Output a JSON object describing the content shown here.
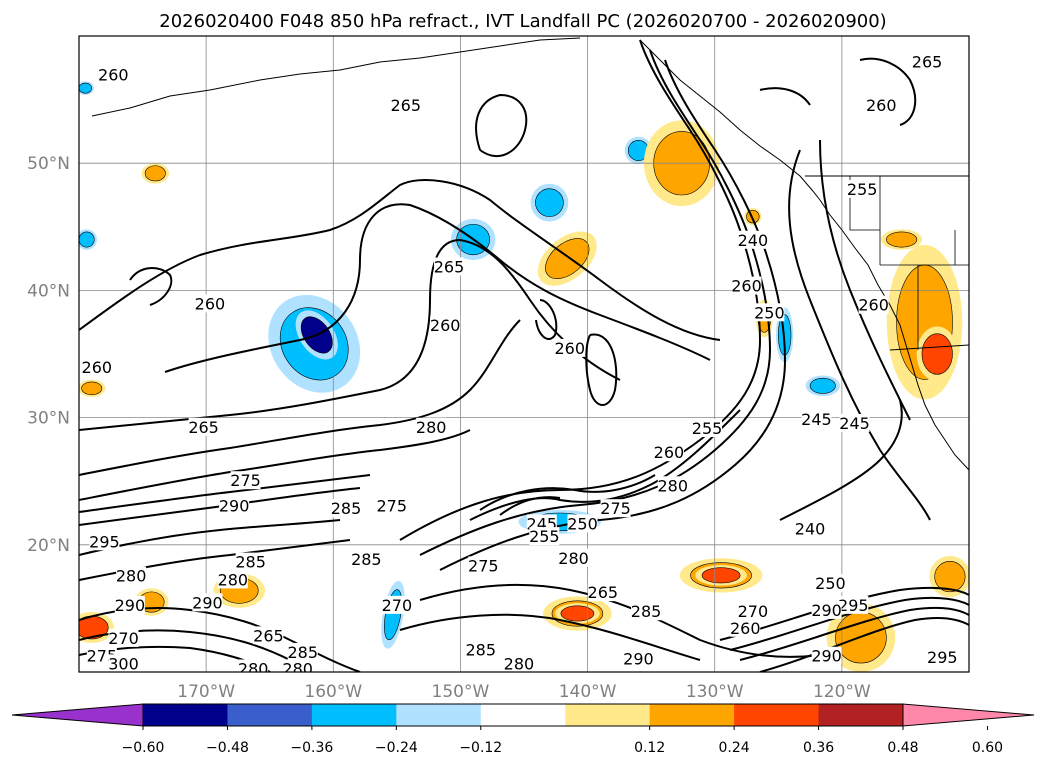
{
  "chart_data": {
    "type": "contour-map",
    "title": "2026020400 F048 850 hPa refract., IVT Landfall PC (2026020700 - 2026020900)",
    "lon_range": [
      -180,
      -110
    ],
    "lat_range": [
      10,
      60
    ],
    "lat_ticks": [
      {
        "value": 20,
        "label": "20°N"
      },
      {
        "value": 30,
        "label": "30°N"
      },
      {
        "value": 40,
        "label": "40°N"
      },
      {
        "value": 50,
        "label": "50°N"
      }
    ],
    "lon_ticks": [
      {
        "value": -170,
        "label": "170°W"
      },
      {
        "value": -160,
        "label": "160°W"
      },
      {
        "value": -150,
        "label": "150°W"
      },
      {
        "value": -140,
        "label": "140°W"
      },
      {
        "value": -130,
        "label": "130°W"
      },
      {
        "value": -120,
        "label": "120°W"
      }
    ],
    "grid": true,
    "contour_labels": [
      {
        "text": "260",
        "lon": -177.3,
        "lat": 56.9
      },
      {
        "text": "265",
        "lon": -154.3,
        "lat": 54.5
      },
      {
        "text": "265",
        "lon": -113.3,
        "lat": 57.9
      },
      {
        "text": "260",
        "lon": -116.9,
        "lat": 54.5
      },
      {
        "text": "260",
        "lon": -169.7,
        "lat": 38.9
      },
      {
        "text": "265",
        "lon": -150.9,
        "lat": 41.8
      },
      {
        "text": "260",
        "lon": -151.2,
        "lat": 37.2
      },
      {
        "text": "260",
        "lon": -141.4,
        "lat": 35.4
      },
      {
        "text": "260",
        "lon": -178.6,
        "lat": 33.9
      },
      {
        "text": "265",
        "lon": -170.2,
        "lat": 29.2
      },
      {
        "text": "240",
        "lon": -127.0,
        "lat": 43.9
      },
      {
        "text": "250",
        "lon": -125.7,
        "lat": 38.2
      },
      {
        "text": "260",
        "lon": -127.5,
        "lat": 40.3
      },
      {
        "text": "255",
        "lon": -118.4,
        "lat": 47.9
      },
      {
        "text": "260",
        "lon": -117.5,
        "lat": 38.8
      },
      {
        "text": "245",
        "lon": -122.0,
        "lat": 29.8
      },
      {
        "text": "245",
        "lon": -119.0,
        "lat": 29.5
      },
      {
        "text": "280",
        "lon": -152.3,
        "lat": 29.2
      },
      {
        "text": "275",
        "lon": -166.9,
        "lat": 25.0
      },
      {
        "text": "290",
        "lon": -167.8,
        "lat": 23.0
      },
      {
        "text": "285",
        "lon": -159.0,
        "lat": 22.8
      },
      {
        "text": "275",
        "lon": -155.4,
        "lat": 23.0
      },
      {
        "text": "245",
        "lon": -143.6,
        "lat": 21.6
      },
      {
        "text": "250",
        "lon": -140.4,
        "lat": 21.6
      },
      {
        "text": "255",
        "lon": -143.4,
        "lat": 20.6
      },
      {
        "text": "260",
        "lon": -133.6,
        "lat": 27.2
      },
      {
        "text": "255",
        "lon": -130.6,
        "lat": 29.1
      },
      {
        "text": "275",
        "lon": -137.8,
        "lat": 22.8
      },
      {
        "text": "280",
        "lon": -133.3,
        "lat": 24.6
      },
      {
        "text": "240",
        "lon": -122.5,
        "lat": 21.2
      },
      {
        "text": "295",
        "lon": -178.0,
        "lat": 20.2
      },
      {
        "text": "280",
        "lon": -175.9,
        "lat": 17.5
      },
      {
        "text": "285",
        "lon": -166.5,
        "lat": 18.6
      },
      {
        "text": "285",
        "lon": -157.4,
        "lat": 18.8
      },
      {
        "text": "280",
        "lon": -167.9,
        "lat": 17.2
      },
      {
        "text": "290",
        "lon": -176.0,
        "lat": 15.2
      },
      {
        "text": "290",
        "lon": -169.9,
        "lat": 15.4
      },
      {
        "text": "270",
        "lon": -155.0,
        "lat": 15.2
      },
      {
        "text": "275",
        "lon": -148.2,
        "lat": 18.3
      },
      {
        "text": "280",
        "lon": -141.1,
        "lat": 18.9
      },
      {
        "text": "265",
        "lon": -138.8,
        "lat": 16.2
      },
      {
        "text": "285",
        "lon": -135.4,
        "lat": 14.7
      },
      {
        "text": "270",
        "lon": -176.5,
        "lat": 12.6
      },
      {
        "text": "265",
        "lon": -165.1,
        "lat": 12.8
      },
      {
        "text": "285",
        "lon": -162.4,
        "lat": 11.5
      },
      {
        "text": "275",
        "lon": -178.2,
        "lat": 11.2
      },
      {
        "text": "300",
        "lon": -176.5,
        "lat": 10.6
      },
      {
        "text": "280",
        "lon": -162.8,
        "lat": 10.2
      },
      {
        "text": "280",
        "lon": -166.3,
        "lat": 10.2
      },
      {
        "text": "285",
        "lon": -148.4,
        "lat": 11.7
      },
      {
        "text": "280",
        "lon": -145.4,
        "lat": 10.6
      },
      {
        "text": "290",
        "lon": -136.0,
        "lat": 11.0
      },
      {
        "text": "250",
        "lon": -120.9,
        "lat": 16.9
      },
      {
        "text": "295",
        "lon": -119.1,
        "lat": 15.2
      },
      {
        "text": "290",
        "lon": -121.2,
        "lat": 14.8
      },
      {
        "text": "270",
        "lon": -127.0,
        "lat": 14.7
      },
      {
        "text": "260",
        "lon": -127.6,
        "lat": 13.4
      },
      {
        "text": "290",
        "lon": -121.2,
        "lat": 11.2
      },
      {
        "text": "295",
        "lon": -112.1,
        "lat": 11.1
      }
    ],
    "contour_levels": [
      240,
      245,
      250,
      255,
      260,
      265,
      270,
      275,
      280,
      285,
      290,
      295,
      300
    ],
    "colorbar": {
      "orientation": "horizontal",
      "ticks": [
        -0.6,
        -0.48,
        -0.36,
        -0.24,
        -0.12,
        0.12,
        0.24,
        0.36,
        0.48,
        0.6
      ],
      "tick_labels": [
        "−0.60",
        "−0.48",
        "−0.36",
        "−0.24",
        "−0.12",
        "0.12",
        "0.24",
        "0.36",
        "0.48",
        "0.60"
      ],
      "under_color": "#9932cc",
      "over_color": "#ff88aa",
      "colors": [
        "#9a30d0",
        "#00008b",
        "#3a5fcd",
        "#00bfff",
        "#b0e2ff",
        "#ffffff",
        "#ffe98a",
        "#ffa500",
        "#ff4500",
        "#b22222",
        "#ff88aa"
      ]
    },
    "shaded_features": [
      {
        "sign": "negative",
        "level": -0.24,
        "lon": -161.5,
        "lat": 35.8,
        "rx": 2.5,
        "ry": 3.0,
        "rot": -35
      },
      {
        "sign": "negative",
        "level": -0.48,
        "lon": -161.3,
        "lat": 36.5,
        "rx": 1.0,
        "ry": 1.6,
        "rot": -35
      },
      {
        "sign": "negative",
        "level": -0.24,
        "lon": -142.2,
        "lat": 21.8,
        "rx": 2.4,
        "ry": 0.7,
        "rot": 0
      },
      {
        "sign": "negative",
        "level": -0.24,
        "lon": -149.0,
        "lat": 44.0,
        "rx": 1.3,
        "ry": 1.2,
        "rot": 0
      },
      {
        "sign": "negative",
        "level": -0.24,
        "lon": -143.0,
        "lat": 46.9,
        "rx": 1.1,
        "ry": 1.1,
        "rot": 0
      },
      {
        "sign": "negative",
        "level": -0.24,
        "lon": -136.0,
        "lat": 51.0,
        "rx": 0.8,
        "ry": 0.8,
        "rot": 0
      },
      {
        "sign": "negative",
        "level": -0.24,
        "lon": -124.5,
        "lat": 36.5,
        "rx": 0.5,
        "ry": 1.6,
        "rot": 0
      },
      {
        "sign": "negative",
        "level": -0.24,
        "lon": -121.5,
        "lat": 32.5,
        "rx": 1.0,
        "ry": 0.6,
        "rot": 0
      },
      {
        "sign": "negative",
        "level": -0.24,
        "lon": -155.3,
        "lat": 14.5,
        "rx": 0.6,
        "ry": 2.0,
        "rot": 10
      },
      {
        "sign": "negative",
        "level": -0.24,
        "lon": -179.4,
        "lat": 44.0,
        "rx": 0.6,
        "ry": 0.6,
        "rot": 0
      },
      {
        "sign": "negative",
        "level": -0.24,
        "lon": -179.5,
        "lat": 55.9,
        "rx": 0.5,
        "ry": 0.4,
        "rot": 0
      },
      {
        "sign": "positive",
        "level": 0.24,
        "lon": -132.6,
        "lat": 50.0,
        "rx": 2.2,
        "ry": 2.5,
        "rot": 0
      },
      {
        "sign": "positive",
        "level": 0.24,
        "lon": -141.6,
        "lat": 42.5,
        "rx": 2.0,
        "ry": 1.2,
        "rot": -40
      },
      {
        "sign": "positive",
        "level": 0.24,
        "lon": -129.5,
        "lat": 17.6,
        "rx": 2.4,
        "ry": 1.0,
        "rot": 0
      },
      {
        "sign": "positive",
        "level": 0.36,
        "lon": -129.5,
        "lat": 17.6,
        "rx": 1.5,
        "ry": 0.6,
        "rot": 0
      },
      {
        "sign": "positive",
        "level": 0.24,
        "lon": -140.8,
        "lat": 14.6,
        "rx": 2.0,
        "ry": 1.0,
        "rot": 0
      },
      {
        "sign": "positive",
        "level": 0.36,
        "lon": -140.8,
        "lat": 14.6,
        "rx": 1.3,
        "ry": 0.6,
        "rot": 0
      },
      {
        "sign": "positive",
        "level": 0.24,
        "lon": -113.5,
        "lat": 37.5,
        "rx": 2.2,
        "ry": 4.5,
        "rot": 0
      },
      {
        "sign": "positive",
        "level": 0.36,
        "lon": -112.5,
        "lat": 35.0,
        "rx": 1.2,
        "ry": 1.6,
        "rot": 0
      },
      {
        "sign": "positive",
        "level": 0.24,
        "lon": -118.5,
        "lat": 12.7,
        "rx": 2.0,
        "ry": 2.0,
        "rot": 0
      },
      {
        "sign": "positive",
        "level": 0.24,
        "lon": -111.5,
        "lat": 17.5,
        "rx": 1.2,
        "ry": 1.2,
        "rot": 0
      },
      {
        "sign": "positive",
        "level": 0.24,
        "lon": -167.4,
        "lat": 16.4,
        "rx": 1.5,
        "ry": 1.0,
        "rot": 0
      },
      {
        "sign": "positive",
        "level": 0.24,
        "lon": -174.3,
        "lat": 15.5,
        "rx": 1.0,
        "ry": 0.8,
        "rot": 0
      },
      {
        "sign": "positive",
        "level": 0.36,
        "lon": -179.0,
        "lat": 13.5,
        "rx": 1.3,
        "ry": 0.9,
        "rot": 0
      },
      {
        "sign": "positive",
        "level": 0.24,
        "lon": -174.0,
        "lat": 49.2,
        "rx": 0.8,
        "ry": 0.6,
        "rot": 0
      },
      {
        "sign": "positive",
        "level": 0.24,
        "lon": -179.0,
        "lat": 32.3,
        "rx": 0.8,
        "ry": 0.5,
        "rot": 0
      },
      {
        "sign": "positive",
        "level": 0.24,
        "lon": -126.1,
        "lat": 37.8,
        "rx": 0.5,
        "ry": 1.1,
        "rot": 0
      },
      {
        "sign": "positive",
        "level": 0.24,
        "lon": -115.3,
        "lat": 44.0,
        "rx": 1.2,
        "ry": 0.6,
        "rot": 0
      },
      {
        "sign": "positive",
        "level": 0.24,
        "lon": -127.0,
        "lat": 45.8,
        "rx": 0.5,
        "ry": 0.5,
        "rot": 0
      }
    ]
  }
}
